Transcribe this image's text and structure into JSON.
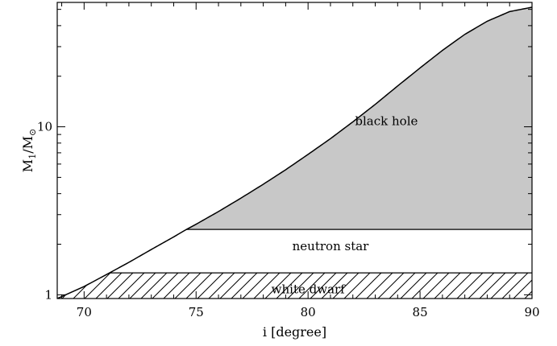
{
  "chart_data": {
    "type": "area",
    "x_axis": {
      "label": "i [degree]",
      "range": [
        68.8,
        90
      ],
      "ticks": [
        70,
        75,
        80,
        85,
        90
      ],
      "tick_labels": [
        "70",
        "75",
        "80",
        "85",
        "90"
      ]
    },
    "y_axis": {
      "label_main": "M",
      "label_sub1": "1",
      "label_mid": "/M",
      "label_sub2": "⊙",
      "scale": "log",
      "range": [
        0.95,
        55
      ],
      "ticks": [
        1,
        10
      ],
      "tick_labels": [
        "1",
        "10"
      ]
    },
    "curve": {
      "x": [
        68.8,
        70,
        71,
        72,
        73,
        74,
        74.5,
        75,
        76,
        77,
        78,
        79,
        80,
        81,
        82,
        83,
        84,
        85,
        86,
        87,
        88,
        89,
        90
      ],
      "y": [
        0.95,
        1.12,
        1.32,
        1.56,
        1.86,
        2.21,
        2.42,
        2.63,
        3.13,
        3.76,
        4.55,
        5.55,
        6.85,
        8.5,
        10.7,
        13.6,
        17.5,
        22.4,
        28.5,
        35.5,
        42.5,
        48.5,
        51.5
      ]
    },
    "regions": [
      {
        "name": "black hole",
        "y_min": 2.45,
        "fill": "#c8c8c8"
      },
      {
        "name": "neutron star",
        "y_min": 1.35,
        "y_max": 2.45,
        "fill": "#ffffff"
      },
      {
        "name": "white dwarf",
        "y_min": 0.95,
        "y_max": 1.35,
        "fill": "hatched"
      }
    ],
    "region_label_positions": {
      "black hole": [
        83.5,
        10.8
      ],
      "neutron star": [
        81,
        1.95
      ],
      "white dwarf": [
        80,
        1.08
      ]
    },
    "grid": false
  }
}
